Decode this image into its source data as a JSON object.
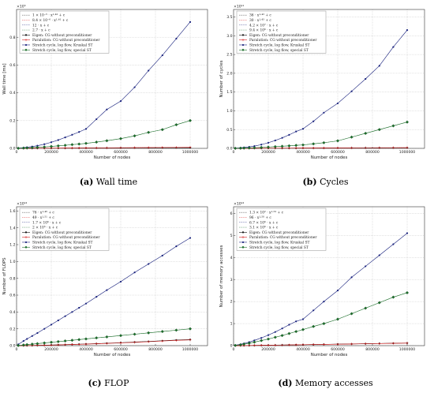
{
  "captions": [
    {
      "letter": "(a)",
      "text": "Wall time"
    },
    {
      "letter": "(b)",
      "text": "Cycles"
    },
    {
      "letter": "(c)",
      "text": "FLOP"
    },
    {
      "letter": "(d)",
      "text": "Memory accesses"
    }
  ],
  "chart_data": [
    {
      "type": "line",
      "ylabel": "Wall time [ms]",
      "xlabel": "Number of nodes",
      "y_exponent_label": "×10⁵",
      "x_ticks": [
        "0",
        "200000",
        "400000",
        "600000",
        "800000",
        "1000000"
      ],
      "y_ticks": [
        "0.0",
        "0.2",
        "0.4",
        "0.6",
        "0.8"
      ],
      "xlim": [
        0,
        1100000
      ],
      "ylim": [
        0,
        1.0
      ],
      "grid": true,
      "legend_position": "top-left",
      "fit_labels": [
        "1 × 10⁻⁵ · x¹·⁴² + c",
        "8.4 × 10⁻⁶ · x¹·⁴¹ + c",
        "12 · x + c",
        "2.7 · x + c"
      ],
      "series": [
        {
          "name": "Eigen: CG without preconditioner",
          "color": "#111111",
          "marker": "dot",
          "x": [
            10000,
            40000,
            60000,
            90000,
            120000,
            160000,
            200000,
            240000,
            280000,
            320000,
            360000,
            400000,
            460000,
            520000,
            600000,
            680000,
            760000,
            840000,
            920000,
            1000000
          ],
          "y": [
            0.0001,
            0.0003,
            0.0004,
            0.0006,
            0.0008,
            0.001,
            0.0012,
            0.0014,
            0.0016,
            0.0018,
            0.002,
            0.0022,
            0.0025,
            0.0028,
            0.0031,
            0.0035,
            0.0038,
            0.0042,
            0.0045,
            0.0048
          ]
        },
        {
          "name": "Paralution: CG without preconditioner",
          "color": "#d62020",
          "marker": "plus",
          "x": [
            10000,
            40000,
            60000,
            90000,
            120000,
            160000,
            200000,
            240000,
            280000,
            320000,
            360000,
            400000,
            460000,
            520000,
            600000,
            680000,
            760000,
            840000,
            920000,
            1000000
          ],
          "y": [
            0.0001,
            0.0003,
            0.0005,
            0.0007,
            0.001,
            0.0013,
            0.0016,
            0.0019,
            0.0022,
            0.0025,
            0.0028,
            0.0031,
            0.0036,
            0.004,
            0.0046,
            0.0052,
            0.0058,
            0.0064,
            0.007,
            0.0075
          ]
        },
        {
          "name": "Stretch cycle, log flow, Kruskal ST",
          "color": "#1a237e",
          "marker": "dot",
          "x": [
            10000,
            40000,
            60000,
            90000,
            120000,
            160000,
            200000,
            240000,
            280000,
            320000,
            360000,
            400000,
            460000,
            520000,
            600000,
            680000,
            760000,
            840000,
            920000,
            1000000
          ],
          "y": [
            0.002,
            0.005,
            0.008,
            0.013,
            0.019,
            0.03,
            0.044,
            0.06,
            0.079,
            0.098,
            0.118,
            0.14,
            0.21,
            0.28,
            0.34,
            0.44,
            0.56,
            0.67,
            0.79,
            0.91
          ]
        },
        {
          "name": "Stretch cycle, log flow, special ST",
          "color": "#1b6e2a",
          "marker": "diamond",
          "x": [
            10000,
            40000,
            60000,
            90000,
            120000,
            160000,
            200000,
            240000,
            280000,
            320000,
            360000,
            400000,
            460000,
            520000,
            600000,
            680000,
            760000,
            840000,
            920000,
            1000000
          ],
          "y": [
            0.0005,
            0.002,
            0.003,
            0.005,
            0.007,
            0.01,
            0.014,
            0.018,
            0.022,
            0.027,
            0.031,
            0.036,
            0.045,
            0.055,
            0.07,
            0.09,
            0.115,
            0.135,
            0.17,
            0.2
          ]
        }
      ]
    },
    {
      "type": "line",
      "ylabel": "Number of cycles",
      "xlabel": "Number of nodes",
      "y_exponent_label": "×10¹¹",
      "x_ticks": [
        "0",
        "200000",
        "400000",
        "600000",
        "800000",
        "1000000"
      ],
      "y_ticks": [
        "0.0",
        "0.5",
        "1.0",
        "1.5",
        "2.0",
        "2.5",
        "3.0",
        "3.5"
      ],
      "xlim": [
        0,
        1100000
      ],
      "ylim": [
        0,
        3.7
      ],
      "grid": true,
      "legend_position": "top-left",
      "fit_labels": [
        "36 · x¹·⁴³ + c",
        "30 · x¹·⁴³ + c",
        "4.2 × 10⁷ · x + c",
        "9.4 × 10⁶ · x + c"
      ],
      "series": [
        {
          "name": "Eigen: CG without preconditioner",
          "color": "#111111",
          "marker": "dot",
          "x": [
            10000,
            40000,
            60000,
            90000,
            120000,
            160000,
            200000,
            240000,
            280000,
            320000,
            360000,
            400000,
            460000,
            520000,
            600000,
            680000,
            760000,
            840000,
            920000,
            1000000
          ],
          "y": [
            0.0002,
            0.0008,
            0.0012,
            0.0018,
            0.0024,
            0.003,
            0.0036,
            0.0042,
            0.0048,
            0.0054,
            0.006,
            0.0066,
            0.0075,
            0.0085,
            0.0095,
            0.0105,
            0.0115,
            0.0125,
            0.0135,
            0.0145
          ]
        },
        {
          "name": "Paralution: CG without preconditioner",
          "color": "#d62020",
          "marker": "plus",
          "x": [
            10000,
            40000,
            60000,
            90000,
            120000,
            160000,
            200000,
            240000,
            280000,
            320000,
            360000,
            400000,
            460000,
            520000,
            600000,
            680000,
            760000,
            840000,
            920000,
            1000000
          ],
          "y": [
            0.0003,
            0.001,
            0.0015,
            0.0022,
            0.003,
            0.0038,
            0.0046,
            0.0054,
            0.0062,
            0.007,
            0.0078,
            0.0086,
            0.0098,
            0.011,
            0.0125,
            0.014,
            0.0155,
            0.017,
            0.0185,
            0.02
          ]
        },
        {
          "name": "Stretch cycle, log flow, Kruskal ST",
          "color": "#1a237e",
          "marker": "dot",
          "x": [
            10000,
            40000,
            60000,
            90000,
            120000,
            160000,
            200000,
            240000,
            280000,
            320000,
            360000,
            400000,
            460000,
            520000,
            600000,
            680000,
            760000,
            840000,
            920000,
            1000000
          ],
          "y": [
            0.005,
            0.015,
            0.025,
            0.04,
            0.06,
            0.1,
            0.15,
            0.21,
            0.28,
            0.36,
            0.45,
            0.52,
            0.72,
            0.95,
            1.2,
            1.52,
            1.85,
            2.2,
            2.7,
            3.15
          ]
        },
        {
          "name": "Stretch cycle, log flow, special ST",
          "color": "#1b6e2a",
          "marker": "diamond",
          "x": [
            10000,
            40000,
            60000,
            90000,
            120000,
            160000,
            200000,
            240000,
            280000,
            320000,
            360000,
            400000,
            460000,
            520000,
            600000,
            680000,
            760000,
            840000,
            920000,
            1000000
          ],
          "y": [
            0.001,
            0.004,
            0.007,
            0.011,
            0.016,
            0.024,
            0.034,
            0.045,
            0.056,
            0.068,
            0.08,
            0.092,
            0.12,
            0.15,
            0.2,
            0.3,
            0.4,
            0.5,
            0.6,
            0.7
          ]
        }
      ]
    },
    {
      "type": "line",
      "ylabel": "Number of FLOPS",
      "xlabel": "Number of nodes",
      "y_exponent_label": "×10¹²",
      "x_ticks": [
        "0",
        "200000",
        "400000",
        "600000",
        "800000",
        "1000000"
      ],
      "y_ticks": [
        "0.0",
        "0.2",
        "0.4",
        "0.6",
        "0.8",
        "1.0",
        "1.2",
        "1.4",
        "1.6"
      ],
      "xlim": [
        0,
        1100000
      ],
      "ylim": [
        0,
        1.65
      ],
      "grid": true,
      "legend_position": "top-left",
      "fit_labels": [
        "76 · x¹·⁴⁹ + c",
        "49 · x¹·⁵¹ + c",
        "1.7 × 10⁶ · x + c",
        "2 × 10⁵ · x + c"
      ],
      "series": [
        {
          "name": "Eigen: CG without preconditioner",
          "color": "#111111",
          "marker": "dot",
          "x": [
            10000,
            40000,
            60000,
            90000,
            120000,
            160000,
            200000,
            240000,
            280000,
            320000,
            360000,
            400000,
            460000,
            520000,
            600000,
            680000,
            760000,
            840000,
            920000,
            1000000
          ],
          "y": [
            0.0003,
            0.001,
            0.0016,
            0.0026,
            0.0037,
            0.0055,
            0.0075,
            0.0096,
            0.012,
            0.0144,
            0.017,
            0.0197,
            0.024,
            0.0286,
            0.0352,
            0.0424,
            0.05,
            0.058,
            0.066,
            0.072
          ]
        },
        {
          "name": "Paralution: CG without preconditioner",
          "color": "#d62020",
          "marker": "plus",
          "x": [
            10000,
            40000,
            60000,
            90000,
            120000,
            160000,
            200000,
            240000,
            280000,
            320000,
            360000,
            400000,
            460000,
            520000,
            600000,
            680000,
            760000,
            840000,
            920000,
            1000000
          ],
          "y": [
            0.0002,
            0.0008,
            0.0013,
            0.0022,
            0.0032,
            0.0048,
            0.0066,
            0.0086,
            0.0108,
            0.013,
            0.0155,
            0.0181,
            0.022,
            0.0264,
            0.0327,
            0.0395,
            0.047,
            0.055,
            0.063,
            0.068
          ]
        },
        {
          "name": "Stretch cycle, log flow, Kruskal ST",
          "color": "#1a237e",
          "marker": "dot",
          "x": [
            10000,
            40000,
            60000,
            90000,
            120000,
            160000,
            200000,
            240000,
            280000,
            320000,
            360000,
            400000,
            460000,
            520000,
            600000,
            680000,
            760000,
            840000,
            920000,
            1000000
          ],
          "y": [
            0.015,
            0.055,
            0.08,
            0.115,
            0.15,
            0.2,
            0.25,
            0.3,
            0.35,
            0.4,
            0.45,
            0.5,
            0.58,
            0.66,
            0.76,
            0.87,
            0.97,
            1.07,
            1.18,
            1.28
          ]
        },
        {
          "name": "Stretch cycle, log flow, special ST",
          "color": "#1b6e2a",
          "marker": "diamond",
          "x": [
            10000,
            40000,
            60000,
            90000,
            120000,
            160000,
            200000,
            240000,
            280000,
            320000,
            360000,
            400000,
            460000,
            520000,
            600000,
            680000,
            760000,
            840000,
            920000,
            1000000
          ],
          "y": [
            0.002,
            0.008,
            0.012,
            0.018,
            0.024,
            0.032,
            0.04,
            0.048,
            0.056,
            0.064,
            0.072,
            0.08,
            0.092,
            0.104,
            0.12,
            0.136,
            0.152,
            0.168,
            0.184,
            0.2
          ]
        }
      ]
    },
    {
      "type": "line",
      "ylabel": "Number of memory accesses",
      "xlabel": "Number of nodes",
      "y_exponent_label": "×10¹²",
      "x_ticks": [
        "0",
        "200000",
        "400000",
        "600000",
        "800000",
        "1000000"
      ],
      "y_ticks": [
        "0",
        "1",
        "2",
        "3",
        "4",
        "5",
        "6"
      ],
      "xlim": [
        0,
        1100000
      ],
      "ylim": [
        0,
        6.3
      ],
      "grid": true,
      "legend_position": "top-left",
      "fit_labels": [
        "1.3 × 10² · x¹·⁵² + c",
        "96 · x¹·⁵⁰ + c",
        "6.7 × 10⁶ · x + c",
        "3.1 × 10⁶ · x + c"
      ],
      "series": [
        {
          "name": "Eigen: CG without preconditioner",
          "color": "#111111",
          "marker": "dot",
          "x": [
            10000,
            40000,
            60000,
            90000,
            120000,
            160000,
            200000,
            240000,
            280000,
            320000,
            360000,
            400000,
            460000,
            520000,
            600000,
            680000,
            760000,
            840000,
            920000,
            1000000
          ],
          "y": [
            0.001,
            0.004,
            0.006,
            0.009,
            0.012,
            0.016,
            0.02,
            0.024,
            0.029,
            0.034,
            0.039,
            0.044,
            0.051,
            0.058,
            0.068,
            0.078,
            0.088,
            0.098,
            0.108,
            0.118
          ]
        },
        {
          "name": "Paralution: CG without preconditioner",
          "color": "#d62020",
          "marker": "plus",
          "x": [
            10000,
            40000,
            60000,
            90000,
            120000,
            160000,
            200000,
            240000,
            280000,
            320000,
            360000,
            400000,
            460000,
            520000,
            600000,
            680000,
            760000,
            840000,
            920000,
            1000000
          ],
          "y": [
            0.0008,
            0.003,
            0.005,
            0.008,
            0.011,
            0.015,
            0.019,
            0.023,
            0.027,
            0.032,
            0.037,
            0.042,
            0.049,
            0.056,
            0.065,
            0.075,
            0.085,
            0.095,
            0.105,
            0.114
          ]
        },
        {
          "name": "Stretch cycle, log flow, Kruskal ST",
          "color": "#1a237e",
          "marker": "dot",
          "x": [
            10000,
            40000,
            60000,
            90000,
            120000,
            160000,
            200000,
            240000,
            280000,
            320000,
            360000,
            400000,
            460000,
            520000,
            600000,
            680000,
            760000,
            840000,
            920000,
            1000000
          ],
          "y": [
            0.02,
            0.06,
            0.1,
            0.16,
            0.24,
            0.35,
            0.48,
            0.62,
            0.78,
            0.95,
            1.1,
            1.2,
            1.6,
            2.0,
            2.5,
            3.1,
            3.6,
            4.1,
            4.6,
            5.1
          ]
        },
        {
          "name": "Stretch cycle, log flow, special ST",
          "color": "#1b6e2a",
          "marker": "diamond",
          "x": [
            10000,
            40000,
            60000,
            90000,
            120000,
            160000,
            200000,
            240000,
            280000,
            320000,
            360000,
            400000,
            460000,
            520000,
            600000,
            680000,
            760000,
            840000,
            920000,
            1000000
          ],
          "y": [
            0.01,
            0.04,
            0.07,
            0.11,
            0.16,
            0.23,
            0.3,
            0.38,
            0.46,
            0.55,
            0.64,
            0.73,
            0.87,
            1.0,
            1.2,
            1.45,
            1.7,
            1.95,
            2.2,
            2.4
          ]
        }
      ]
    }
  ]
}
